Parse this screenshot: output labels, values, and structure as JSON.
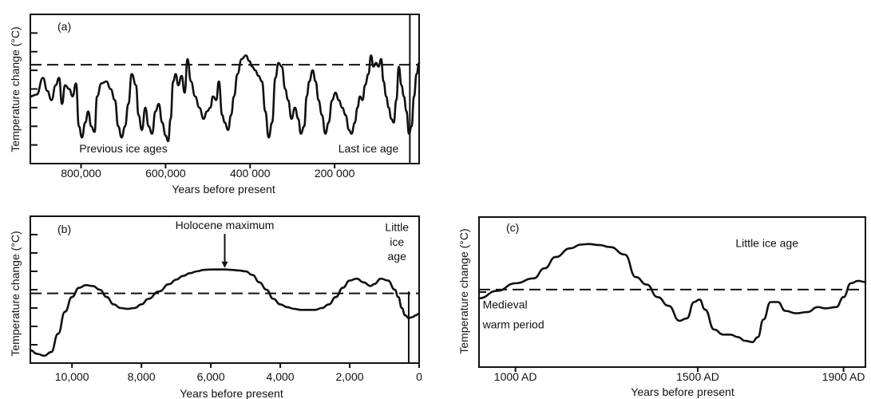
{
  "chart_data": [
    {
      "type": "line",
      "panel_label": "(a)",
      "xlabel": "Years before present",
      "ylabel": "Temperature change (°C)",
      "xlim": [
        920000,
        0
      ],
      "ylim": [
        0,
        8
      ],
      "y_ticks": 9,
      "y_tick_labels_shown": false,
      "x_ticks": [
        {
          "value": 800000,
          "label": "800,000"
        },
        {
          "value": 600000,
          "label": "600,000"
        },
        {
          "value": 400000,
          "label": "400 000"
        },
        {
          "value": 200000,
          "label": "200 000"
        }
      ],
      "reference_level": 5.3,
      "vertical_marker_x": 22000,
      "annotations": [
        {
          "text": "Previous ice ages",
          "x": 700000,
          "y": 0.6
        },
        {
          "text": "Last ice age",
          "x": 120000,
          "y": 0.6
        }
      ],
      "series": [
        {
          "x": [
            920000,
            905000,
            890000,
            880000,
            870000,
            860000,
            852000,
            845000,
            838000,
            828000,
            820000,
            812000,
            805000,
            798000,
            790000,
            783000,
            776000,
            768000,
            762000,
            752000,
            740000,
            730000,
            720000,
            712000,
            704000,
            696000,
            688000,
            680000,
            670000,
            664000,
            656000,
            648000,
            640000,
            632000,
            624000,
            616000,
            608000,
            600000,
            594000,
            588000,
            582000,
            576000,
            570000,
            562000,
            555000,
            548000,
            540000,
            530000,
            520000,
            510000,
            502000,
            494000,
            488000,
            480000,
            474000,
            466000,
            460000,
            452000,
            445000,
            438000,
            430000,
            420000,
            410000,
            402000,
            395000,
            388000,
            380000,
            372000,
            364000,
            356000,
            348000,
            340000,
            333000,
            325000,
            317000,
            310000,
            302000,
            294000,
            286000,
            280000,
            272000,
            266000,
            260000,
            252000,
            245000,
            238000,
            230000,
            222000,
            214000,
            206000,
            198000,
            190000,
            182000,
            174000,
            166000,
            160000,
            152000,
            146000,
            140000,
            134000,
            128000,
            120000,
            114000,
            108000,
            102000,
            96000,
            90000,
            84000,
            78000,
            72000,
            66000,
            60000,
            54000,
            48000,
            42000,
            36000,
            30000,
            24000,
            18000,
            12000,
            6000,
            0
          ],
          "y": [
            3.6,
            3.7,
            4.6,
            3.9,
            3.4,
            4.2,
            4.6,
            3.2,
            4.2,
            4.0,
            3.6,
            4.3,
            2.0,
            1.4,
            2.2,
            2.8,
            2.0,
            1.7,
            3.6,
            4.3,
            4.4,
            4.0,
            3.4,
            2.0,
            1.4,
            2.0,
            3.2,
            4.8,
            4.2,
            2.6,
            1.8,
            3.0,
            2.0,
            1.6,
            2.8,
            3.2,
            2.2,
            1.5,
            1.2,
            2.4,
            4.4,
            4.8,
            4.2,
            4.7,
            3.8,
            5.6,
            4.4,
            3.6,
            3.0,
            2.4,
            2.8,
            3.0,
            3.6,
            3.4,
            4.4,
            2.6,
            2.2,
            1.8,
            2.6,
            3.6,
            4.8,
            5.6,
            5.8,
            5.5,
            5.2,
            5.0,
            4.7,
            4.4,
            2.8,
            1.4,
            2.2,
            4.6,
            5.4,
            5.2,
            4.0,
            3.4,
            2.4,
            3.0,
            2.4,
            1.6,
            2.0,
            3.6,
            4.4,
            5.0,
            4.4,
            3.4,
            2.6,
            1.6,
            2.2,
            3.4,
            3.8,
            3.4,
            3.0,
            2.6,
            1.8,
            1.6,
            2.2,
            3.0,
            3.6,
            3.4,
            4.2,
            4.8,
            5.8,
            5.2,
            5.4,
            5.2,
            5.6,
            4.4,
            3.6,
            3.0,
            2.4,
            2.2,
            3.4,
            5.2,
            4.2,
            3.6,
            2.8,
            1.6,
            2.0,
            3.6,
            4.8,
            5.4
          ]
        }
      ]
    },
    {
      "type": "line",
      "panel_label": "(b)",
      "xlabel": "Years before present",
      "ylabel": "Temperature change (°C)",
      "xlim": [
        11200,
        0
      ],
      "ylim": [
        0,
        8
      ],
      "y_ticks": 9,
      "y_tick_labels_shown": false,
      "x_ticks": [
        {
          "value": 10000,
          "label": "10,000"
        },
        {
          "value": 8000,
          "label": "8,000"
        },
        {
          "value": 6000,
          "label": "6,000"
        },
        {
          "value": 4000,
          "label": "4,000"
        },
        {
          "value": 2000,
          "label": "2,000"
        },
        {
          "value": 0,
          "label": "0"
        }
      ],
      "reference_level": 3.8,
      "vertical_marker_x": 300,
      "annotations": [
        {
          "text": "Holocene maximum",
          "x": 5600,
          "y": 7.3,
          "arrow_to_y": 5.1
        },
        {
          "text": "Little",
          "x": 640,
          "y": 7.2
        },
        {
          "text": "ice",
          "x": 640,
          "y": 6.4
        },
        {
          "text": "age",
          "x": 640,
          "y": 5.6
        }
      ],
      "series": [
        {
          "x": [
            11200,
            11000,
            10800,
            10600,
            10400,
            10200,
            10000,
            9800,
            9600,
            9400,
            9200,
            9000,
            8800,
            8600,
            8400,
            8200,
            8000,
            7800,
            7500,
            7200,
            7000,
            6800,
            6600,
            6400,
            6200,
            6000,
            5800,
            5600,
            5400,
            5200,
            5000,
            4800,
            4600,
            4400,
            4200,
            4000,
            3800,
            3600,
            3400,
            3200,
            3000,
            2800,
            2600,
            2400,
            2200,
            2000,
            1800,
            1600,
            1400,
            1300,
            1100,
            900,
            700,
            600,
            500,
            400,
            300,
            200,
            100,
            0
          ],
          "y": [
            0.7,
            0.5,
            0.4,
            0.6,
            1.6,
            2.8,
            3.6,
            4.1,
            4.25,
            4.2,
            4.0,
            3.6,
            3.2,
            3.0,
            2.95,
            3.0,
            3.2,
            3.5,
            3.9,
            4.3,
            4.55,
            4.75,
            4.9,
            5.0,
            5.08,
            5.1,
            5.1,
            5.1,
            5.08,
            5.05,
            5.0,
            4.8,
            4.4,
            4.0,
            3.5,
            3.2,
            3.05,
            2.95,
            2.9,
            2.9,
            2.9,
            3.0,
            3.2,
            3.6,
            4.1,
            4.5,
            4.6,
            4.4,
            4.2,
            4.3,
            4.6,
            4.5,
            4.0,
            3.6,
            3.0,
            2.6,
            2.45,
            2.5,
            2.6,
            2.7
          ]
        }
      ]
    },
    {
      "type": "line",
      "panel_label": "(c)",
      "xlabel": "Years before present",
      "ylabel": "Temperature change (°C)",
      "xlim": [
        900,
        1960
      ],
      "ylim": [
        0,
        6
      ],
      "y_ticks": 3,
      "y_tick_labels_shown": false,
      "x_ticks": [
        {
          "value": 1000,
          "label": "1000 AD"
        },
        {
          "value": 1500,
          "label": "1500 AD"
        },
        {
          "value": 1900,
          "label": "1900 AD"
        }
      ],
      "reference_level": 3.1,
      "annotations": [
        {
          "text": "Little ice age",
          "x": 1690,
          "y": 4.8
        },
        {
          "text": "Medieval",
          "x": 910,
          "y": 2.35
        },
        {
          "text": "warm period",
          "x": 910,
          "y": 1.55
        }
      ],
      "series": [
        {
          "x": [
            900,
            950,
            1000,
            1050,
            1080,
            1110,
            1150,
            1180,
            1200,
            1230,
            1260,
            1300,
            1330,
            1360,
            1390,
            1420,
            1450,
            1470,
            1490,
            1505,
            1520,
            1545,
            1570,
            1590,
            1610,
            1630,
            1650,
            1665,
            1680,
            1700,
            1720,
            1740,
            1770,
            1800,
            1830,
            1850,
            1880,
            1900,
            1920,
            1940,
            1960
          ],
          "y": [
            2.75,
            3.05,
            3.35,
            3.55,
            3.95,
            4.4,
            4.75,
            4.9,
            4.92,
            4.88,
            4.8,
            4.5,
            3.6,
            3.3,
            2.8,
            2.45,
            1.85,
            1.95,
            2.6,
            2.7,
            2.3,
            1.5,
            1.3,
            1.3,
            1.2,
            1.05,
            1.0,
            1.2,
            1.9,
            2.6,
            2.6,
            2.25,
            2.15,
            2.2,
            2.4,
            2.35,
            2.4,
            2.8,
            3.35,
            3.45,
            3.4
          ]
        }
      ]
    }
  ]
}
